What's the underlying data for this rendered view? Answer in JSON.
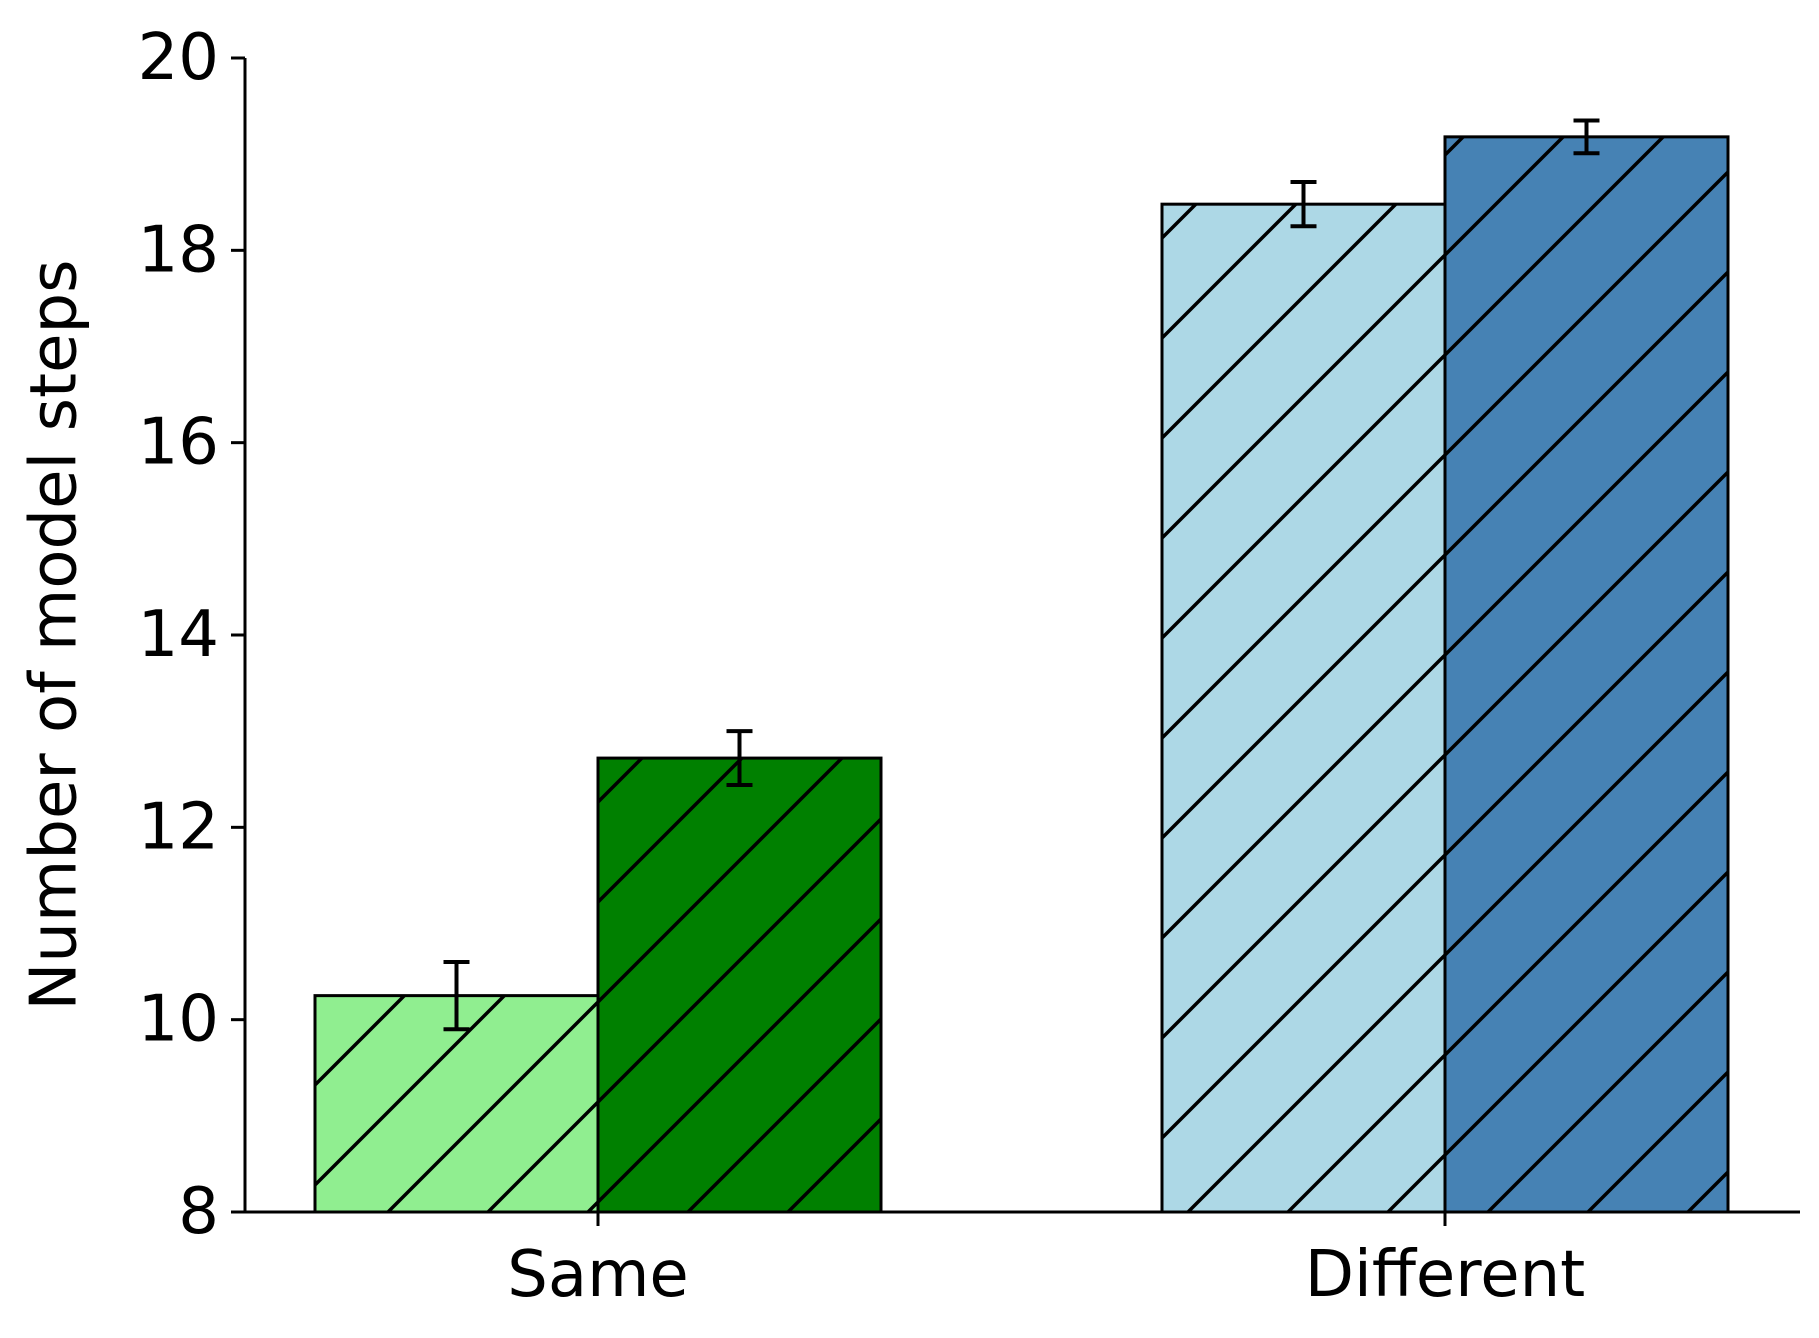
{
  "chart_data": {
    "type": "bar",
    "title": "",
    "xlabel": "",
    "ylabel": "Number of model steps",
    "ylim": [
      8,
      20
    ],
    "yticks": [
      8,
      10,
      12,
      14,
      16,
      18,
      20
    ],
    "ytick_labels": [
      "8",
      "10",
      "12",
      "14",
      "16",
      "18",
      "20"
    ],
    "categories": [
      "Same",
      "Different"
    ],
    "grid": false,
    "legend": "none",
    "bars": [
      {
        "category": "Same",
        "value": 10.25,
        "error": 0.35,
        "color": "#90EE90"
      },
      {
        "category": "Same",
        "value": 12.72,
        "error": 0.28,
        "color": "#008000"
      },
      {
        "category": "Different",
        "value": 18.48,
        "error": 0.23,
        "color": "#ADD8E6"
      },
      {
        "category": "Different",
        "value": 19.18,
        "error": 0.17,
        "color": "#4682B4"
      }
    ],
    "hatch": "diagonal",
    "edge_color": "#000000"
  }
}
